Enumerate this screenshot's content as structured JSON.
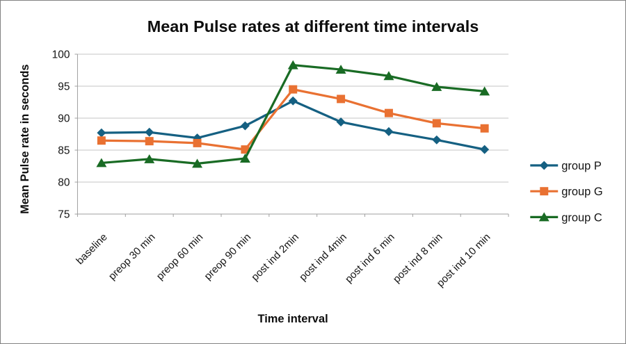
{
  "frame": {
    "border_color": "#828282",
    "background": "#FFFFFF"
  },
  "chart_data": {
    "type": "line",
    "title": "Mean Pulse rates at different time intervals",
    "xlabel": "Time interval",
    "ylabel": "Mean Pulse rate in seconds",
    "categories": [
      "baseline",
      "preop 30 min",
      "preop 60 min",
      "preop 90 min",
      "post ind 2min",
      "post ind 4min",
      "post ind 6 min",
      "post ind 8 min",
      "post ind 10 min"
    ],
    "series": [
      {
        "name": "group P",
        "marker": "diamond",
        "color": "#156082",
        "values": [
          87.7,
          87.8,
          86.9,
          88.8,
          92.7,
          89.4,
          87.9,
          86.6,
          85.1
        ]
      },
      {
        "name": "group G",
        "marker": "square",
        "color": "#E97132",
        "values": [
          86.5,
          86.4,
          86.1,
          85.1,
          94.5,
          93.0,
          90.8,
          89.2,
          88.4
        ]
      },
      {
        "name": "group C",
        "marker": "triangle",
        "color": "#196B24",
        "values": [
          83.0,
          83.6,
          82.9,
          83.7,
          98.3,
          97.6,
          96.6,
          94.9,
          94.2
        ]
      }
    ],
    "ylim": [
      75,
      100
    ],
    "ytick_step": 5,
    "ytick_labels": [
      "75",
      "80",
      "85",
      "90",
      "95",
      "100"
    ],
    "grid": true,
    "legend_position": "right"
  }
}
